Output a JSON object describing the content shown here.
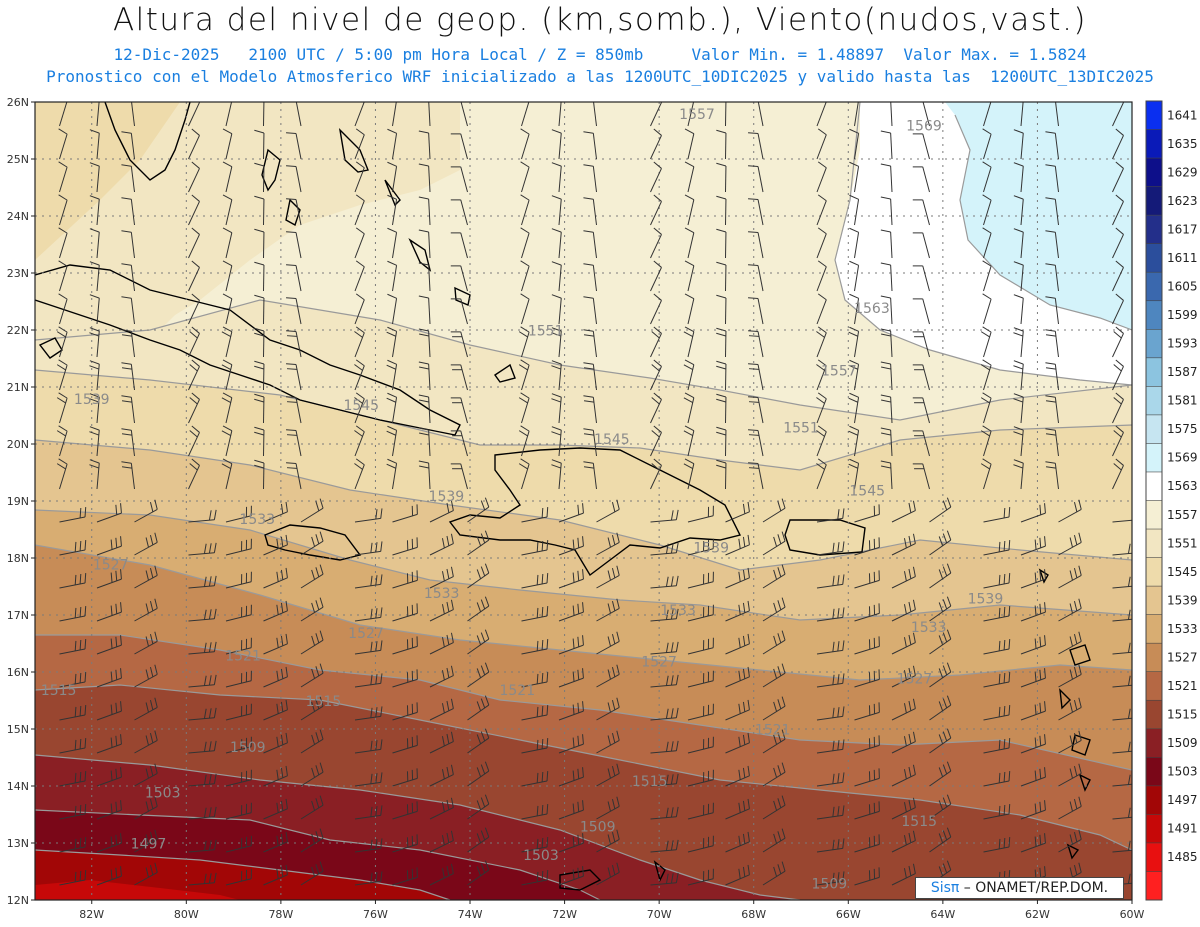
{
  "header": {
    "title": "Altura del nivel de geop. (km,somb.), Viento(nudos,vast.)",
    "subtitle": "12-Dic-2025   2100 UTC / 5:00 pm Hora Local / Z = 850mb     Valor Min. = 1.48897  Valor Max. = 1.5824",
    "subtitle2": "Pronostico con el Modelo Atmosferico WRF inicializado a las 1200UTC_10DIC2025 y valido hasta las  1200UTC_13DIC2025"
  },
  "map": {
    "lon_labels": [
      "82W",
      "80W",
      "78W",
      "76W",
      "74W",
      "72W",
      "70W",
      "68W",
      "66W",
      "64W",
      "62W",
      "60W"
    ],
    "lat_labels": [
      "26N",
      "25N",
      "24N",
      "23N",
      "22N",
      "21N",
      "20N",
      "19N",
      "18N",
      "17N",
      "16N",
      "15N",
      "14N",
      "13N",
      "12N"
    ],
    "contour_labels": [
      {
        "text": "1557",
        "lon": -69.2,
        "lat": 25.7
      },
      {
        "text": "1569",
        "lon": -64.4,
        "lat": 25.5
      },
      {
        "text": "1563",
        "lon": -65.5,
        "lat": 22.3
      },
      {
        "text": "1551",
        "lon": -72.4,
        "lat": 21.9
      },
      {
        "text": "1557",
        "lon": -66.2,
        "lat": 21.2
      },
      {
        "text": "1539",
        "lon": -82.0,
        "lat": 20.7
      },
      {
        "text": "1545",
        "lon": -76.3,
        "lat": 20.6
      },
      {
        "text": "1551",
        "lon": -67.0,
        "lat": 20.2
      },
      {
        "text": "1545",
        "lon": -71.0,
        "lat": 20.0
      },
      {
        "text": "1545",
        "lon": -65.6,
        "lat": 19.1
      },
      {
        "text": "1539",
        "lon": -74.5,
        "lat": 19.0
      },
      {
        "text": "1533",
        "lon": -78.5,
        "lat": 18.6
      },
      {
        "text": "1539",
        "lon": -68.9,
        "lat": 18.1
      },
      {
        "text": "1527",
        "lon": -81.6,
        "lat": 17.8
      },
      {
        "text": "1533",
        "lon": -74.6,
        "lat": 17.3
      },
      {
        "text": "1539",
        "lon": -63.1,
        "lat": 17.2
      },
      {
        "text": "1533",
        "lon": -69.6,
        "lat": 17.0
      },
      {
        "text": "1527",
        "lon": -76.2,
        "lat": 16.6
      },
      {
        "text": "1533",
        "lon": -64.3,
        "lat": 16.7
      },
      {
        "text": "1521",
        "lon": -78.8,
        "lat": 16.2
      },
      {
        "text": "1527",
        "lon": -70.0,
        "lat": 16.1
      },
      {
        "text": "1527",
        "lon": -64.6,
        "lat": 15.8
      },
      {
        "text": "1515",
        "lon": -82.7,
        "lat": 15.6
      },
      {
        "text": "1515",
        "lon": -77.1,
        "lat": 15.4
      },
      {
        "text": "1521",
        "lon": -73.0,
        "lat": 15.6
      },
      {
        "text": "1521",
        "lon": -67.6,
        "lat": 14.9
      },
      {
        "text": "1509",
        "lon": -78.7,
        "lat": 14.6
      },
      {
        "text": "1515",
        "lon": -70.2,
        "lat": 14.0
      },
      {
        "text": "1503",
        "lon": -80.5,
        "lat": 13.8
      },
      {
        "text": "1515",
        "lon": -64.5,
        "lat": 13.3
      },
      {
        "text": "1509",
        "lon": -71.3,
        "lat": 13.2
      },
      {
        "text": "1497",
        "lon": -80.8,
        "lat": 12.9
      },
      {
        "text": "1503",
        "lon": -72.5,
        "lat": 12.7
      },
      {
        "text": "1509",
        "lon": -66.4,
        "lat": 12.2
      }
    ]
  },
  "colorbar": {
    "levels": [
      "1641",
      "1635",
      "1629",
      "1623",
      "1617",
      "1611",
      "1605",
      "1599",
      "1593",
      "1587",
      "1581",
      "1575",
      "1569",
      "1563",
      "1557",
      "1551",
      "1545",
      "1539",
      "1533",
      "1527",
      "1521",
      "1515",
      "1509",
      "1503",
      "1497",
      "1491",
      "1485"
    ],
    "colors": [
      "#0a2ff0",
      "#0a1ab8",
      "#0d0f8a",
      "#141a78",
      "#232f8a",
      "#2b4e9c",
      "#3a68ae",
      "#4e86bf",
      "#6aa4cf",
      "#8cc4e0",
      "#aad7ea",
      "#c6e5f1",
      "#d4f3fa",
      "#ffffff",
      "#f5efd4",
      "#f2e6c2",
      "#eedbab",
      "#e4c590",
      "#d8ad72",
      "#c78c57",
      "#b56844",
      "#994630",
      "#8a1f24",
      "#7a0718",
      "#a20606",
      "#c60808",
      "#e81010",
      "#ff2020"
    ]
  },
  "credit": {
    "brand": "Sisπ",
    "text": " – ONAMET/REP.DOM."
  }
}
